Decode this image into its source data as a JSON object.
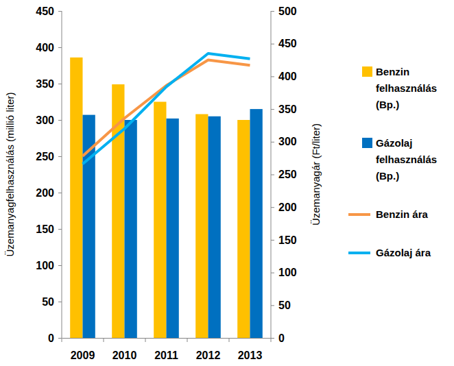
{
  "chart_data": {
    "type": "bar",
    "categories": [
      "2009",
      "2010",
      "2011",
      "2012",
      "2013"
    ],
    "ylabel": "Üzemanyagfelhasználás (millió liter)",
    "y2label": "Üzemanyagár (Ft/liter)",
    "ylim": [
      0,
      450
    ],
    "yticks": [
      0,
      50,
      100,
      150,
      200,
      250,
      300,
      350,
      400,
      450
    ],
    "y2lim": [
      0,
      500
    ],
    "y2ticks": [
      0,
      50,
      100,
      150,
      200,
      250,
      300,
      350,
      400,
      450,
      500
    ],
    "grid": false,
    "legend": "right",
    "series": [
      {
        "name": "Benzin felhasználás (Bp.)",
        "type": "bar",
        "color": "#FFC000",
        "values": [
          386,
          349,
          325,
          308,
          300
        ]
      },
      {
        "name": "Gázolaj felhasználás (Bp.)",
        "type": "bar",
        "color": "#0070C0",
        "values": [
          307,
          300,
          302,
          305,
          315
        ]
      },
      {
        "name": "Benzin ára",
        "type": "line",
        "axis": "y2",
        "color": "#F79646",
        "values": [
          278,
          336,
          386,
          425,
          417
        ]
      },
      {
        "name": "Gázolaj ára",
        "type": "line",
        "axis": "y2",
        "color": "#00B0F0",
        "values": [
          266,
          320,
          384,
          435,
          427
        ]
      }
    ]
  }
}
